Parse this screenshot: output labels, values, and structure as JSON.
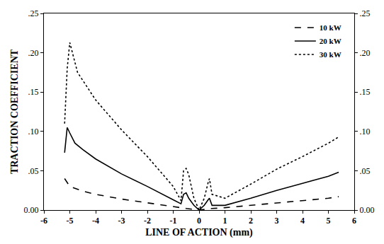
{
  "chart_data": {
    "type": "line",
    "x_label": "LINE OF ACTION (mm)",
    "y_label": "TRACTION COEFFICIENT",
    "xlim": [
      -6,
      6
    ],
    "xticks": [
      -6,
      -5,
      -4,
      -3,
      -2,
      -1,
      0,
      1,
      2,
      3,
      4,
      5,
      6
    ],
    "ylim": [
      0,
      0.25
    ],
    "yticks": [
      {
        "value": 0,
        "label": "0.00"
      },
      {
        "value": 0.05,
        "label": ".05"
      },
      {
        "value": 0.1,
        "label": ".10"
      },
      {
        "value": 0.15,
        "label": ".15"
      },
      {
        "value": 0.2,
        "label": ".20"
      },
      {
        "value": 0.25,
        "label": ".25"
      }
    ],
    "y2lim": [
      0,
      0.25
    ],
    "y2ticks": [
      {
        "value": 0,
        "label": "0.00"
      },
      {
        "value": 0.05,
        "label": ".05"
      },
      {
        "value": 0.1,
        "label": ".10"
      },
      {
        "value": 0.15,
        "label": ".15"
      },
      {
        "value": 0.2,
        "label": ".20"
      },
      {
        "value": 0.25,
        "label": ".25"
      }
    ],
    "grid": false,
    "legend": "upper right",
    "series": [
      {
        "name": "10 kW",
        "color": "#000000",
        "line_style": "dash",
        "x": [
          -5.2,
          -5.0,
          -4.5,
          -4.0,
          -3.0,
          -2.0,
          -1.0,
          -0.5,
          0.0,
          0.5,
          1.0,
          2.0,
          3.0,
          4.0,
          5.0,
          5.4
        ],
        "values": [
          0.04,
          0.03,
          0.024,
          0.02,
          0.014,
          0.009,
          0.004,
          0.002,
          0.0,
          0.002,
          0.003,
          0.006,
          0.009,
          0.012,
          0.015,
          0.017
        ]
      },
      {
        "name": "20 kW",
        "color": "#000000",
        "line_style": "solid",
        "x": [
          -5.2,
          -5.1,
          -5.0,
          -4.8,
          -4.5,
          -4.0,
          -3.0,
          -2.0,
          -1.0,
          -0.7,
          -0.6,
          -0.5,
          -0.4,
          -0.2,
          0.0,
          0.2,
          0.35,
          0.4,
          0.5,
          1.0,
          2.0,
          3.0,
          4.0,
          5.0,
          5.4
        ],
        "values": [
          0.073,
          0.105,
          0.098,
          0.085,
          0.077,
          0.065,
          0.046,
          0.03,
          0.013,
          0.008,
          0.02,
          0.022,
          0.015,
          0.006,
          0.0,
          0.006,
          0.013,
          0.015,
          0.006,
          0.006,
          0.015,
          0.025,
          0.034,
          0.043,
          0.048
        ]
      },
      {
        "name": "30 kW",
        "color": "#000000",
        "line_style": "dot",
        "x": [
          -5.2,
          -5.1,
          -5.0,
          -4.9,
          -4.7,
          -4.5,
          -4.0,
          -3.0,
          -2.0,
          -1.0,
          -0.7,
          -0.6,
          -0.5,
          -0.4,
          -0.2,
          0.0,
          0.2,
          0.35,
          0.4,
          0.5,
          1.0,
          2.0,
          3.0,
          4.0,
          5.0,
          5.4
        ],
        "values": [
          0.11,
          0.18,
          0.213,
          0.2,
          0.175,
          0.165,
          0.14,
          0.102,
          0.068,
          0.03,
          0.012,
          0.05,
          0.053,
          0.045,
          0.015,
          0.0,
          0.015,
          0.035,
          0.04,
          0.02,
          0.015,
          0.033,
          0.052,
          0.068,
          0.085,
          0.093
        ]
      }
    ]
  }
}
